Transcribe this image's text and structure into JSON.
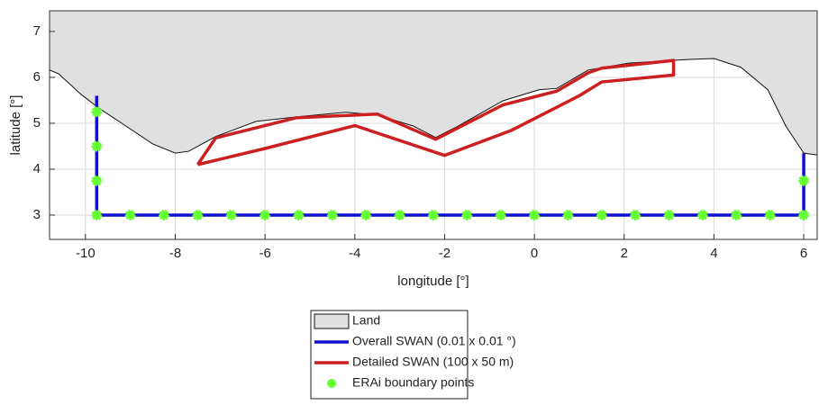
{
  "chart_data": {
    "type": "map",
    "xlabel": "longitude [°]",
    "ylabel": "latitude [°]",
    "xlim": [
      -10.8,
      6.3
    ],
    "ylim": [
      2.47,
      7.45
    ],
    "xticks": [
      -10,
      -8,
      -6,
      -4,
      -2,
      0,
      2,
      4,
      6
    ],
    "yticks": [
      3,
      4,
      5,
      6,
      7
    ],
    "grid": true,
    "series": [
      {
        "name": "Land",
        "kind": "area",
        "color": "#e0e0e0",
        "x": [
          -10.8,
          -10.6,
          -10.1,
          -9.7,
          -9.1,
          -8.5,
          -8.0,
          -7.7,
          -7.1,
          -6.2,
          -5.3,
          -4.2,
          -3.5,
          -2.7,
          -2.2,
          -1.7,
          -0.7,
          0.1,
          0.5,
          1.2,
          2.1,
          3.4,
          4.0,
          4.6,
          5.2,
          5.6,
          6.0,
          6.3
        ],
        "y": [
          6.16,
          6.08,
          5.63,
          5.33,
          4.94,
          4.55,
          4.35,
          4.39,
          4.71,
          5.04,
          5.14,
          5.24,
          5.18,
          4.94,
          4.69,
          4.94,
          5.49,
          5.73,
          5.76,
          6.16,
          6.31,
          6.39,
          6.41,
          6.22,
          5.73,
          4.94,
          4.35,
          4.31
        ]
      },
      {
        "name": "Overall SWAN (0.01 x 0.01 °)",
        "kind": "line",
        "color": "#1010d0",
        "x": [
          -9.75,
          -9.75,
          6,
          6
        ],
        "y": [
          5.6,
          3,
          3,
          4.35
        ]
      },
      {
        "name": "Detailed SWAN (100 x 50 m)",
        "kind": "line",
        "color": "#cc1f1f",
        "x": [
          -7.5,
          -6,
          -4,
          -2,
          -0.5,
          1,
          1.5,
          3.1,
          3.1,
          1.5,
          1.2,
          0.5,
          -0.7,
          -2.2,
          -3.5,
          -5.3,
          -7.1,
          -7.5
        ],
        "y": [
          4.1,
          4.45,
          4.95,
          4.3,
          4.85,
          5.6,
          5.9,
          6.05,
          6.37,
          6.2,
          6.1,
          5.7,
          5.4,
          4.65,
          5.2,
          5.12,
          4.68,
          4.1
        ]
      },
      {
        "name": "ERAi boundary points",
        "kind": "scatter",
        "color": "#66ff33",
        "x": [
          -9.75,
          -9.75,
          -9.75,
          -9.75,
          -9,
          -8.25,
          -7.5,
          -6.75,
          -6,
          -5.25,
          -4.5,
          -3.75,
          -3,
          -2.25,
          -1.5,
          -0.75,
          0,
          0.75,
          1.5,
          2.25,
          3,
          3.75,
          4.5,
          5.25,
          6,
          6
        ],
        "y": [
          5.25,
          4.5,
          3.75,
          3,
          3,
          3,
          3,
          3,
          3,
          3,
          3,
          3,
          3,
          3,
          3,
          3,
          3,
          3,
          3,
          3,
          3,
          3,
          3,
          3,
          3,
          3.75
        ]
      }
    ]
  }
}
